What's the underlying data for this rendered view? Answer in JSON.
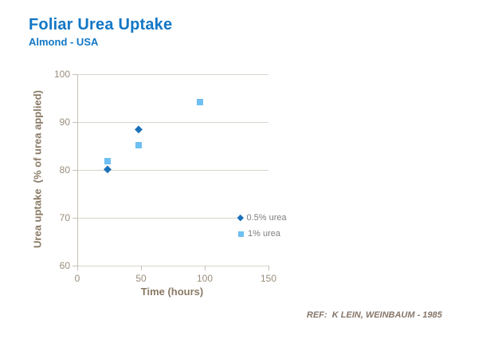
{
  "header": {
    "title": "Foliar Urea Uptake",
    "subtitle": "Almond - USA"
  },
  "footer": {
    "reference": "REF:  K LEIN, WEINBAUM - 1985"
  },
  "colors": {
    "title_blue": "#1277c5",
    "axis_tick_text": "#9a8d7d",
    "axis_title_text": "#8a7a66",
    "legend_text": "#7f7f7f",
    "reference_text": "#86766a",
    "gridline": "#d8d5cb",
    "axis_line": "#c6c1b5",
    "series_half_percent_blue": "#1c72b9",
    "series_one_percent_blue": "#6ebff2"
  },
  "chart_data": {
    "type": "scatter",
    "title": "Foliar Urea Uptake",
    "subtitle": "Almond - USA",
    "xlabel": "Time (hours)",
    "ylabel": "Urea uptake  (% of urea applied)",
    "xlim": [
      0,
      150
    ],
    "ylim": [
      60,
      100
    ],
    "x_ticks": [
      0,
      50,
      100,
      150
    ],
    "y_ticks": [
      100,
      90,
      80,
      70,
      60
    ],
    "grid": "horizontal-only",
    "legend_position": "inside-right",
    "series": [
      {
        "name": "0.5% urea",
        "marker": "diamond",
        "color": "#1c72b9",
        "points": [
          {
            "x": 24,
            "y": 80.2
          },
          {
            "x": 48,
            "y": 88.5
          }
        ]
      },
      {
        "name": "1% urea",
        "marker": "square",
        "color": "#6ebff2",
        "points": [
          {
            "x": 24,
            "y": 81.9
          },
          {
            "x": 48,
            "y": 85.1
          },
          {
            "x": 96,
            "y": 94.1
          }
        ]
      }
    ]
  }
}
